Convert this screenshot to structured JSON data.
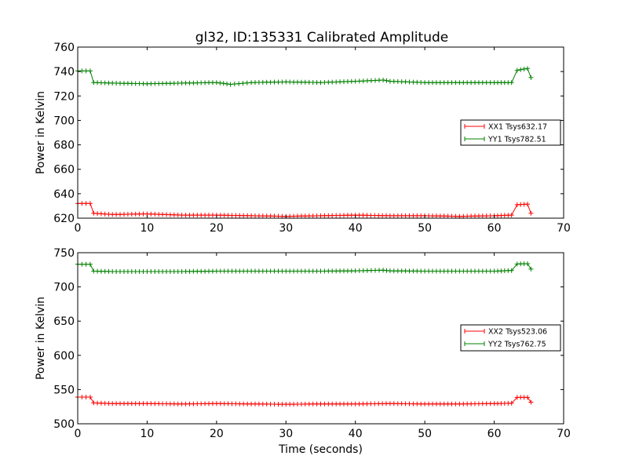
{
  "title": "gl32, ID:135331 Calibrated Amplitude",
  "chart_data": [
    {
      "type": "line",
      "title": "gl32, ID:135331 Calibrated Amplitude",
      "xlabel": "",
      "ylabel": "Power in Kelvin",
      "xlim": [
        0,
        70
      ],
      "ylim": [
        620,
        760
      ],
      "xticks": [
        "0",
        "10",
        "20",
        "30",
        "40",
        "50",
        "60",
        "70"
      ],
      "yticks": [
        "620",
        "640",
        "660",
        "680",
        "700",
        "720",
        "740",
        "760"
      ],
      "grid": false,
      "legend_position": "center-right",
      "series": [
        {
          "name": "XX1 Tsys632.17",
          "color": "#ff0000",
          "marker": "+",
          "points": [
            [
              0,
              632
            ],
            [
              1.8,
              632
            ],
            [
              2.3,
              624
            ],
            [
              5,
              623
            ],
            [
              10,
              623.5
            ],
            [
              15,
              622.5
            ],
            [
              20,
              622.5
            ],
            [
              25,
              622
            ],
            [
              30,
              621.5
            ],
            [
              35,
              622
            ],
            [
              40,
              622.5
            ],
            [
              45,
              622
            ],
            [
              50,
              622
            ],
            [
              55,
              621.5
            ],
            [
              60,
              622
            ],
            [
              62.5,
              622.5
            ],
            [
              63.3,
              631
            ],
            [
              64.8,
              631.5
            ],
            [
              65.3,
              624
            ]
          ]
        },
        {
          "name": "YY1 Tsys782.51",
          "color": "#008000",
          "marker": "+",
          "points": [
            [
              0,
              740.5
            ],
            [
              1.8,
              740.5
            ],
            [
              2.3,
              731
            ],
            [
              5,
              730.5
            ],
            [
              10,
              730
            ],
            [
              15,
              730.5
            ],
            [
              20,
              731
            ],
            [
              22,
              729.5
            ],
            [
              25,
              731
            ],
            [
              30,
              731.5
            ],
            [
              35,
              731
            ],
            [
              40,
              732
            ],
            [
              44,
              733
            ],
            [
              45,
              732
            ],
            [
              50,
              731
            ],
            [
              55,
              731
            ],
            [
              60,
              731
            ],
            [
              62.5,
              731
            ],
            [
              63.3,
              741
            ],
            [
              64.8,
              742.5
            ],
            [
              65.3,
              735
            ]
          ]
        }
      ]
    },
    {
      "type": "line",
      "title": "",
      "xlabel": "Time (seconds)",
      "ylabel": "Power in Kelvin",
      "xlim": [
        0,
        70
      ],
      "ylim": [
        500,
        750
      ],
      "xticks": [
        "0",
        "10",
        "20",
        "30",
        "40",
        "50",
        "60",
        "70"
      ],
      "yticks": [
        "500",
        "550",
        "600",
        "650",
        "700",
        "750"
      ],
      "grid": false,
      "legend_position": "center-right",
      "series": [
        {
          "name": "XX2 Tsys523.06",
          "color": "#ff0000",
          "marker": "+",
          "points": [
            [
              0,
              539
            ],
            [
              1.8,
              539
            ],
            [
              2.3,
              530.5
            ],
            [
              5,
              529.5
            ],
            [
              10,
              529.5
            ],
            [
              15,
              529
            ],
            [
              20,
              529.5
            ],
            [
              25,
              529
            ],
            [
              30,
              528.5
            ],
            [
              35,
              529
            ],
            [
              40,
              529
            ],
            [
              45,
              529.5
            ],
            [
              50,
              529
            ],
            [
              55,
              529
            ],
            [
              60,
              529.5
            ],
            [
              62.5,
              530
            ],
            [
              63.3,
              538.5
            ],
            [
              64.8,
              538.5
            ],
            [
              65.3,
              531.5
            ]
          ]
        },
        {
          "name": "YY2 Tsys762.75",
          "color": "#008000",
          "marker": "+",
          "points": [
            [
              0,
              733
            ],
            [
              1.8,
              733
            ],
            [
              2.3,
              723
            ],
            [
              5,
              722.5
            ],
            [
              10,
              722.5
            ],
            [
              15,
              722.5
            ],
            [
              20,
              723
            ],
            [
              25,
              723
            ],
            [
              30,
              723
            ],
            [
              35,
              723
            ],
            [
              40,
              723.5
            ],
            [
              44,
              724.5
            ],
            [
              45,
              723.5
            ],
            [
              50,
              723
            ],
            [
              55,
              723
            ],
            [
              60,
              723
            ],
            [
              62.5,
              724
            ],
            [
              63.3,
              733.5
            ],
            [
              64.8,
              734
            ],
            [
              65.3,
              726
            ]
          ]
        }
      ]
    }
  ]
}
